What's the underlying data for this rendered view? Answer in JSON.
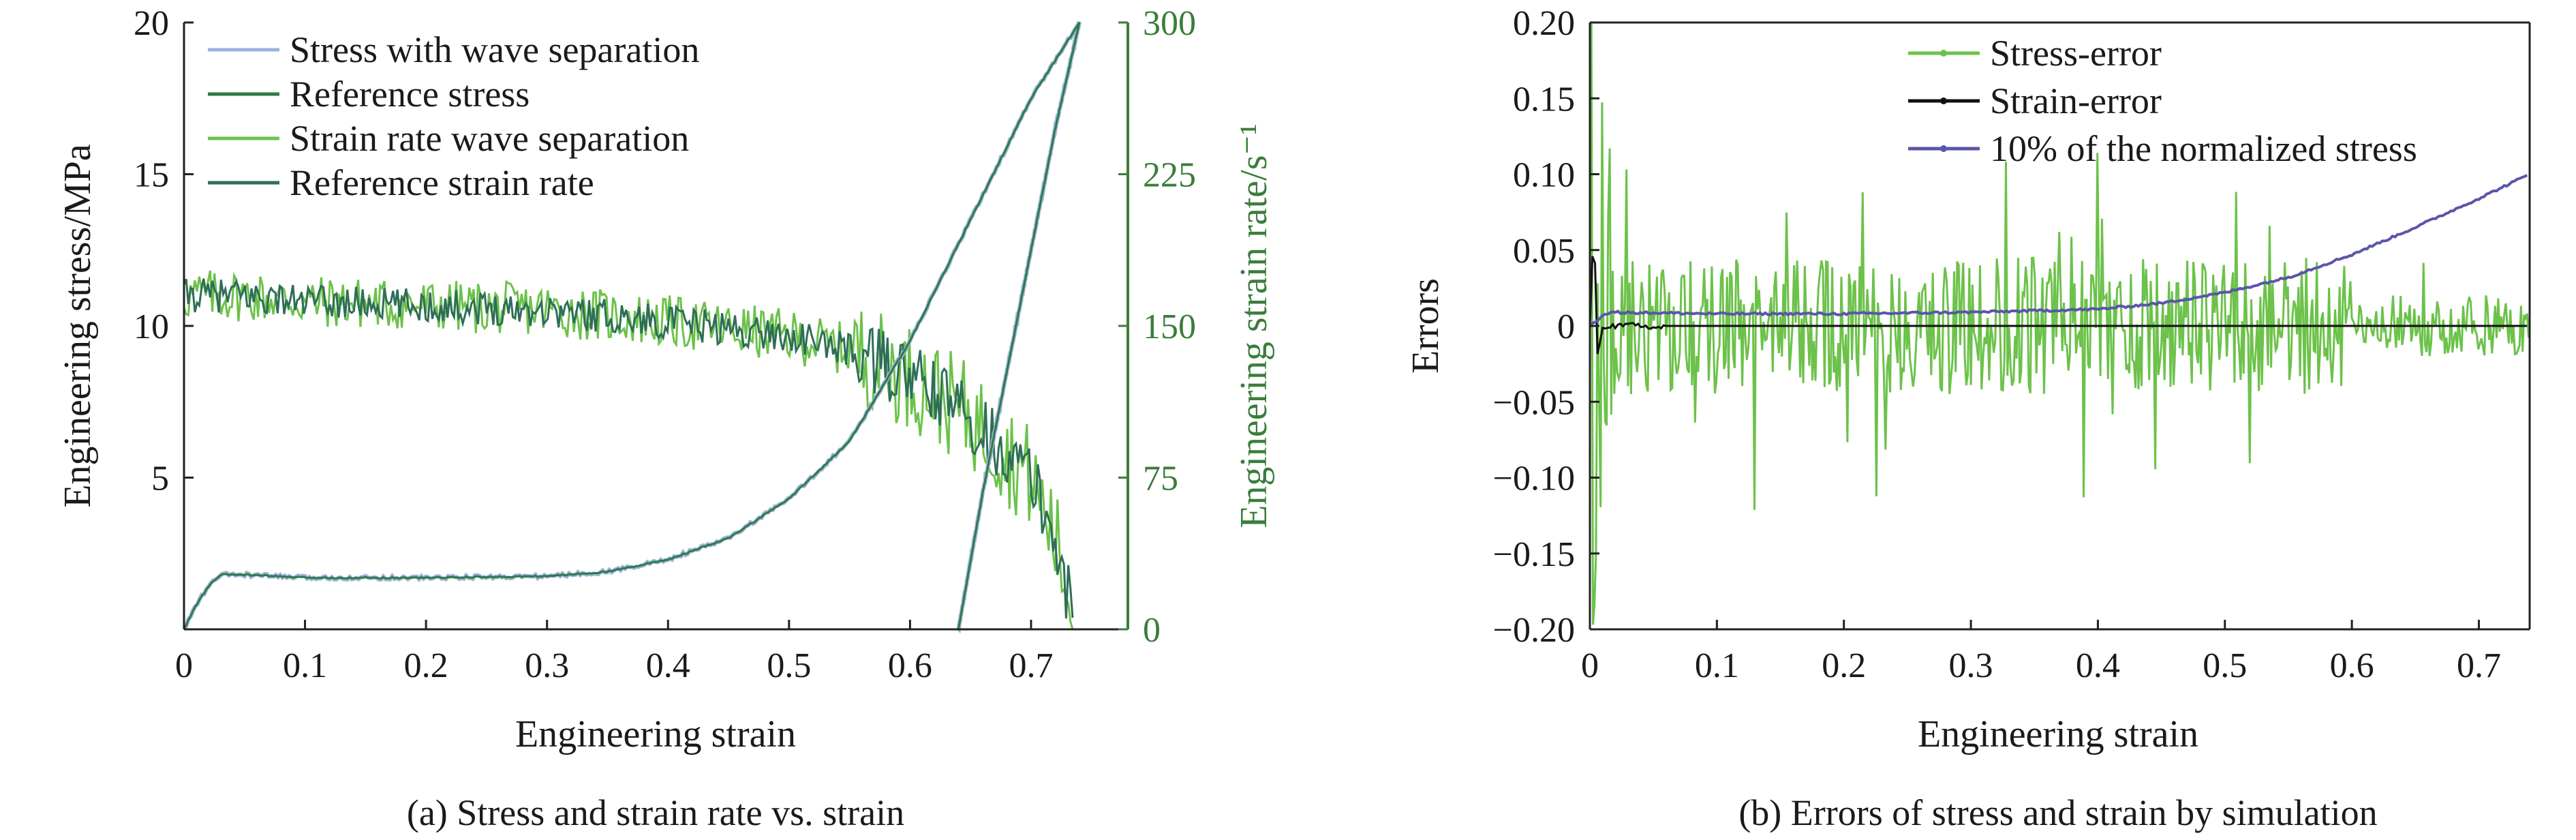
{
  "panels": {
    "a": {
      "caption": "(a) Stress and strain rate vs. strain",
      "xlabel": "Engineering strain",
      "ylabel_left": "Engineering stress/MPa",
      "ylabel_right": "Engineering strain rate/s⁻¹",
      "xticks": [
        "0",
        "0.1",
        "0.2",
        "0.3",
        "0.4",
        "0.5",
        "0.6",
        "0.7"
      ],
      "yticks_left": [
        "5",
        "10",
        "15",
        "20"
      ],
      "yticks_right": [
        "0",
        "75",
        "150",
        "225",
        "300"
      ],
      "legend": [
        "Stress with wave separation",
        "Reference stress",
        "Strain rate wave separation",
        "Reference strain rate"
      ]
    },
    "b": {
      "caption": "(b) Errors of stress and strain by simulation",
      "xlabel": "Engineering strain",
      "ylabel": "Errors",
      "xticks": [
        "0",
        "0.1",
        "0.2",
        "0.3",
        "0.4",
        "0.5",
        "0.6",
        "0.7"
      ],
      "yticks": [
        "0.20",
        "0.15",
        "0.10",
        "0.05",
        "0",
        "−0.05",
        "−0.10",
        "−0.15",
        "−0.20"
      ],
      "legend": [
        "Stress-error",
        "Strain-error",
        "10% of the normalized stress"
      ]
    }
  },
  "colors": {
    "stress_wave": "#9bb3dc",
    "reference_stress": "#2f7a46",
    "strain_rate_wave": "#6cc24a",
    "reference_strain_rate": "#2e6e57",
    "stress_error": "#6cc24a",
    "strain_error": "#111111",
    "normalized_stress": "#5a56a8",
    "right_axis": "#3a7d3a"
  },
  "chart_data": [
    {
      "type": "line",
      "title": "",
      "xlabel": "Engineering strain",
      "ylabel": "Engineering stress/MPa",
      "ylabel_right": "Engineering strain rate/s⁻¹",
      "xlim": [
        0,
        0.78
      ],
      "ylim": [
        0,
        20
      ],
      "ylim_right": [
        0,
        300
      ],
      "legend_position": "top-left",
      "series": [
        {
          "name": "Stress with wave separation",
          "axis": "left",
          "x": [
            0.0,
            0.01,
            0.02,
            0.03,
            0.05,
            0.1,
            0.2,
            0.3,
            0.35,
            0.4,
            0.45,
            0.5,
            0.55,
            0.6,
            0.65,
            0.7,
            0.74
          ],
          "y": [
            0.0,
            0.8,
            1.4,
            1.8,
            1.8,
            1.7,
            1.7,
            1.75,
            1.9,
            2.3,
            3.0,
            4.3,
            6.2,
            9.5,
            13.5,
            17.5,
            20.0
          ]
        },
        {
          "name": "Reference stress",
          "axis": "left",
          "x": [
            0.0,
            0.01,
            0.02,
            0.03,
            0.05,
            0.1,
            0.2,
            0.3,
            0.35,
            0.4,
            0.45,
            0.5,
            0.55,
            0.6,
            0.65,
            0.7,
            0.74
          ],
          "y": [
            0.0,
            0.8,
            1.4,
            1.8,
            1.8,
            1.7,
            1.7,
            1.75,
            1.9,
            2.3,
            3.0,
            4.3,
            6.2,
            9.5,
            13.5,
            17.5,
            20.0
          ]
        },
        {
          "name": "Strain rate wave separation",
          "axis": "right",
          "x": [
            0.0,
            0.02,
            0.05,
            0.1,
            0.2,
            0.3,
            0.4,
            0.5,
            0.55,
            0.6,
            0.65,
            0.7,
            0.72,
            0.735
          ],
          "y": [
            165,
            165,
            165,
            162,
            160,
            158,
            152,
            145,
            138,
            125,
            105,
            75,
            45,
            5
          ]
        },
        {
          "name": "Reference strain rate",
          "axis": "right",
          "x": [
            0.0,
            0.02,
            0.05,
            0.1,
            0.2,
            0.3,
            0.4,
            0.5,
            0.55,
            0.6,
            0.65,
            0.7,
            0.72,
            0.735
          ],
          "y": [
            165,
            165,
            165,
            162,
            160,
            158,
            152,
            145,
            138,
            125,
            105,
            75,
            45,
            5
          ]
        }
      ],
      "unloading_branch": {
        "x": [
          0.64,
          0.66,
          0.68,
          0.7,
          0.72,
          0.74
        ],
        "y": [
          0.0,
          4.5,
          8.5,
          12.5,
          16.5,
          20.0
        ]
      }
    },
    {
      "type": "line",
      "title": "",
      "xlabel": "Engineering strain",
      "ylabel": "Errors",
      "xlim": [
        0,
        0.74
      ],
      "ylim": [
        -0.2,
        0.2
      ],
      "legend_position": "top-right",
      "series": [
        {
          "name": "Stress-error",
          "x": [
            0.0,
            0.005,
            0.01,
            0.05,
            0.1,
            0.2,
            0.3,
            0.4,
            0.5,
            0.6,
            0.7,
            0.74
          ],
          "y": [
            0.2,
            -0.2,
            0.15,
            0.0,
            0.0,
            0.0,
            0.0,
            0.0,
            0.0,
            0.0,
            0.0,
            0.0
          ],
          "noise_amplitude": 0.07
        },
        {
          "name": "Strain-error",
          "x": [
            0.0,
            0.003,
            0.006,
            0.01,
            0.05,
            0.1,
            0.3,
            0.5,
            0.7,
            0.74
          ],
          "y": [
            0.0,
            0.07,
            -0.02,
            0.0,
            0.0,
            0.0,
            0.0,
            0.0,
            0.0,
            0.0
          ]
        },
        {
          "name": "10% of the normalized stress",
          "x": [
            0.0,
            0.01,
            0.02,
            0.1,
            0.2,
            0.3,
            0.4,
            0.45,
            0.5,
            0.55,
            0.6,
            0.65,
            0.7,
            0.74
          ],
          "y": [
            0.0,
            0.007,
            0.009,
            0.008,
            0.008,
            0.009,
            0.011,
            0.015,
            0.022,
            0.032,
            0.047,
            0.065,
            0.084,
            0.1
          ]
        }
      ]
    }
  ]
}
